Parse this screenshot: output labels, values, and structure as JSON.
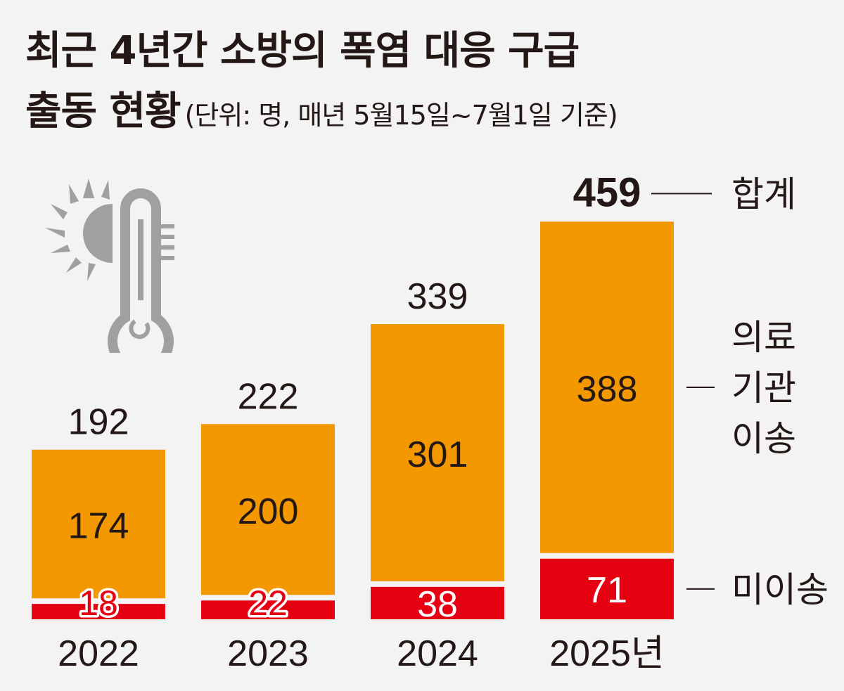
{
  "title_line1": "최근 4년간 소방의 폭염 대응 구급",
  "title_line2": "출동 현황",
  "unit_note": "(단위: 명, 매년 5월15일~7월1일 기준)",
  "colors": {
    "transported": "#f39800",
    "not_transported": "#e50012",
    "text": "#231815",
    "icon": "#a0a0a0",
    "background": "#f3f3f3"
  },
  "icons": [
    "sun-icon",
    "thermometer-icon"
  ],
  "chart_data": {
    "type": "bar",
    "stacked": true,
    "categories": [
      "2022",
      "2023",
      "2024",
      "2025년"
    ],
    "series": [
      {
        "name": "미이송",
        "values": [
          18,
          22,
          38,
          71
        ]
      },
      {
        "name": "의료 기관 이송",
        "values": [
          174,
          200,
          301,
          388
        ]
      }
    ],
    "totals": [
      192,
      222,
      339,
      459
    ],
    "total_label": "합계",
    "legend_labels": [
      "합계",
      "의료\n기관\n이송",
      "미이송"
    ],
    "legend_position": "right",
    "ylim": [
      0,
      480
    ],
    "grid": false
  }
}
